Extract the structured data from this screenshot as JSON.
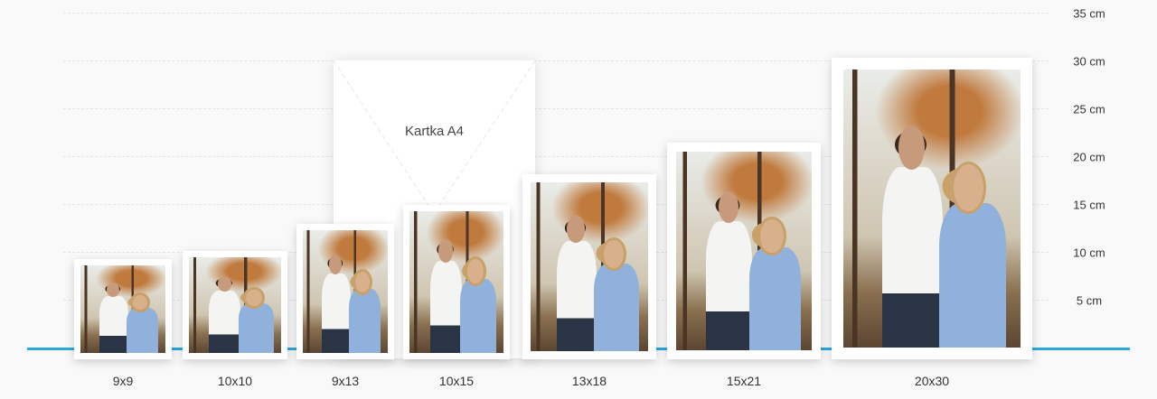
{
  "axis": {
    "unit": "cm",
    "ticks": [
      "35 cm",
      "30 cm",
      "25 cm",
      "20 cm",
      "15 cm",
      "10 cm",
      "5 cm"
    ]
  },
  "colors": {
    "baseline": "#29a8de",
    "background": "#f9f9f9"
  },
  "reference": {
    "label": "Kartka A4"
  },
  "sizes": [
    {
      "label": "9x9"
    },
    {
      "label": "10x10"
    },
    {
      "label": "9x13"
    },
    {
      "label": "10x15"
    },
    {
      "label": "13x18"
    },
    {
      "label": "15x21"
    },
    {
      "label": "20x30"
    }
  ]
}
